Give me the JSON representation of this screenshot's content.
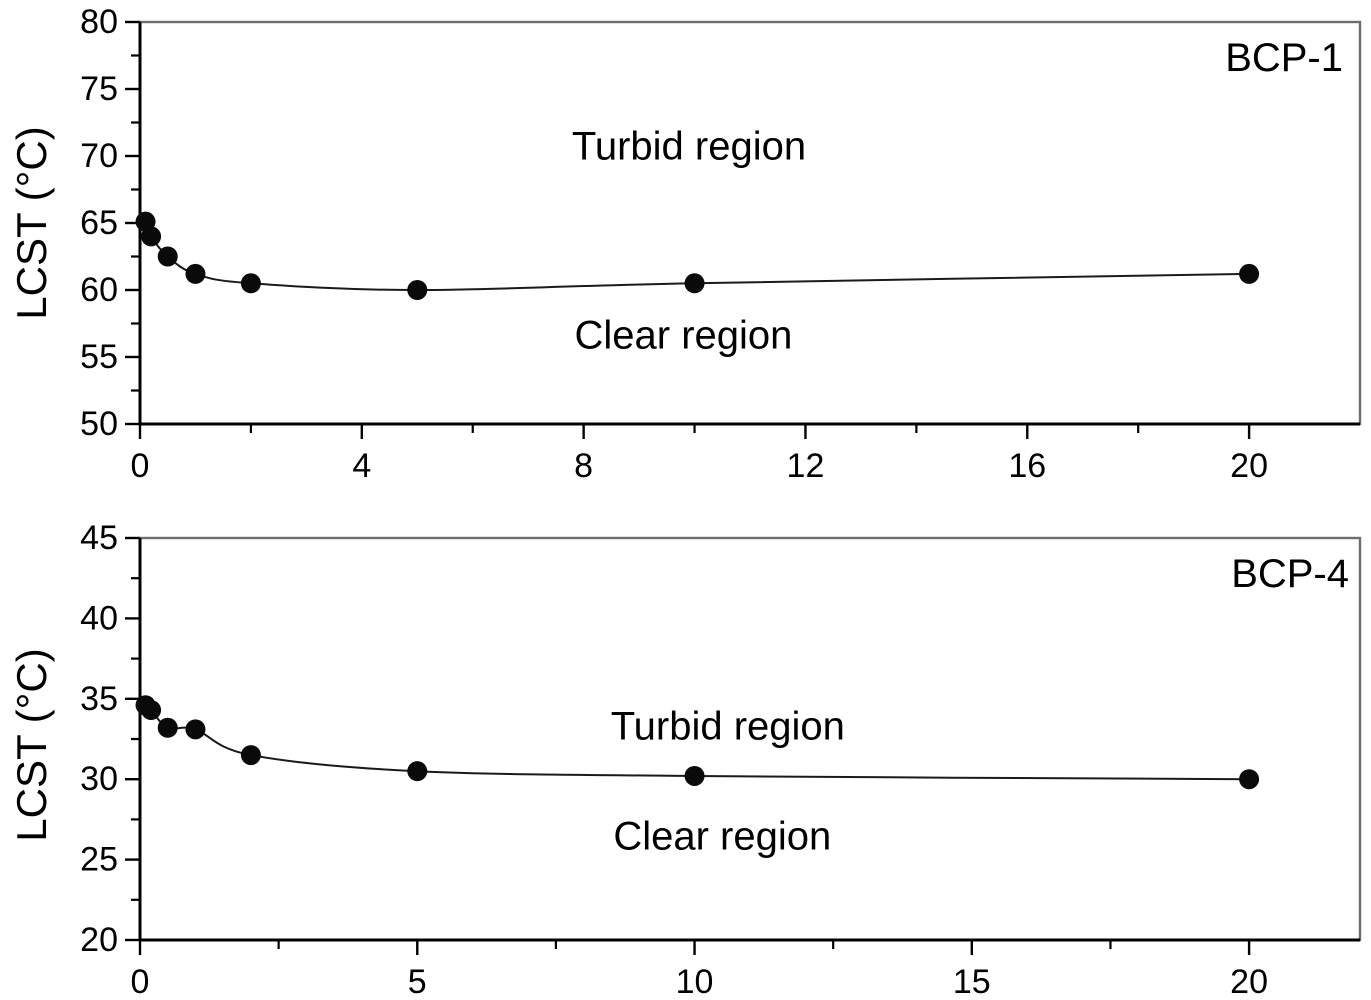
{
  "figure": {
    "background": "#ffffff",
    "text_color": "#000000",
    "line_color": "#1a1a1a",
    "marker_color": "#0a0a0a",
    "frame_color": "#6e6e6e",
    "axis_color": "#000000"
  },
  "chart_data": [
    {
      "type": "line",
      "panel_label": "BCP-1",
      "ylabel": "LCST (°C)",
      "xlabel": "",
      "x": [
        0.1,
        0.2,
        0.5,
        1,
        2,
        5,
        10,
        20
      ],
      "y": [
        65.1,
        64.0,
        62.5,
        61.2,
        60.5,
        60.0,
        60.5,
        61.2
      ],
      "xlim": [
        0,
        22
      ],
      "ylim": [
        50,
        80
      ],
      "grid": false,
      "legend": "none",
      "marker": "filled-circle",
      "xticks": {
        "major": [
          0,
          4,
          8,
          12,
          16,
          20
        ],
        "labels": [
          "0",
          "4",
          "8",
          "12",
          "16",
          "20"
        ],
        "minor": [
          2,
          6,
          10,
          14,
          18
        ]
      },
      "yticks": {
        "major": [
          50,
          55,
          60,
          65,
          70,
          75,
          80
        ],
        "labels": [
          "50",
          "55",
          "60",
          "65",
          "70",
          "75",
          "80"
        ],
        "minor": [
          52.5,
          57.5,
          62.5,
          67.5,
          72.5,
          77.5
        ]
      },
      "annotations": [
        {
          "text": "Turbid region",
          "x": 9.9,
          "y": 70.7
        },
        {
          "text": "Clear region",
          "x": 9.8,
          "y": 56.6
        }
      ]
    },
    {
      "type": "line",
      "panel_label": "BCP-4",
      "ylabel": "LCST (°C)",
      "xlabel": "",
      "x": [
        0.1,
        0.2,
        0.5,
        1,
        2,
        5,
        10,
        20
      ],
      "y": [
        34.6,
        34.3,
        33.2,
        33.1,
        31.5,
        30.5,
        30.2,
        30.0
      ],
      "xlim": [
        0,
        22
      ],
      "ylim": [
        20,
        45
      ],
      "grid": false,
      "legend": "none",
      "marker": "filled-circle",
      "xticks": {
        "major": [
          0,
          5,
          10,
          15,
          20
        ],
        "labels": [
          "0",
          "5",
          "10",
          "15",
          "20"
        ],
        "minor": [
          2.5,
          7.5,
          12.5,
          17.5
        ]
      },
      "yticks": {
        "major": [
          20,
          25,
          30,
          35,
          40,
          45
        ],
        "labels": [
          "20",
          "25",
          "30",
          "35",
          "40",
          "45"
        ],
        "minor": [
          22.5,
          27.5,
          32.5,
          37.5,
          42.5
        ]
      },
      "annotations": [
        {
          "text": "Turbid region",
          "x": 10.6,
          "y": 33.25
        },
        {
          "text": "Clear region",
          "x": 10.5,
          "y": 26.4
        }
      ]
    }
  ]
}
